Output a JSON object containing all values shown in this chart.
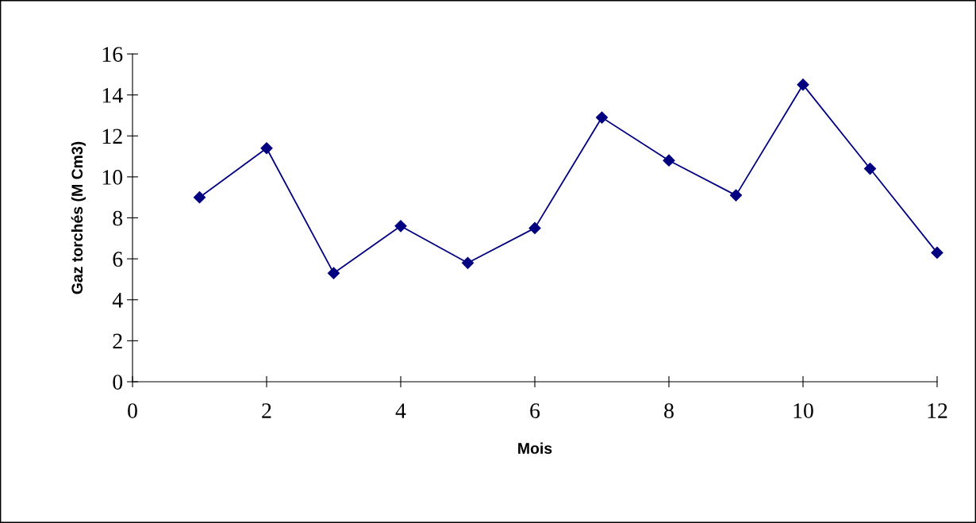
{
  "chart_data": {
    "type": "line",
    "xlabel": "Mois",
    "ylabel": "Gaz torchés (M Cm3)",
    "x": [
      1,
      2,
      3,
      4,
      5,
      6,
      7,
      8,
      9,
      10,
      11,
      12
    ],
    "series": [
      {
        "color": "#000080",
        "values": [
          9.0,
          11.4,
          5.3,
          7.6,
          5.8,
          7.5,
          12.9,
          10.8,
          9.1,
          14.5,
          10.4,
          6.3
        ]
      }
    ],
    "xlim": [
      0,
      12
    ],
    "xticks": [
      0,
      2,
      4,
      6,
      8,
      10,
      12
    ],
    "ylim": [
      0,
      16
    ],
    "yticks": [
      0,
      2,
      4,
      6,
      8,
      10,
      12,
      14,
      16
    ],
    "marker": "diamond",
    "line_style": "solid",
    "grid": false,
    "legend": false
  }
}
